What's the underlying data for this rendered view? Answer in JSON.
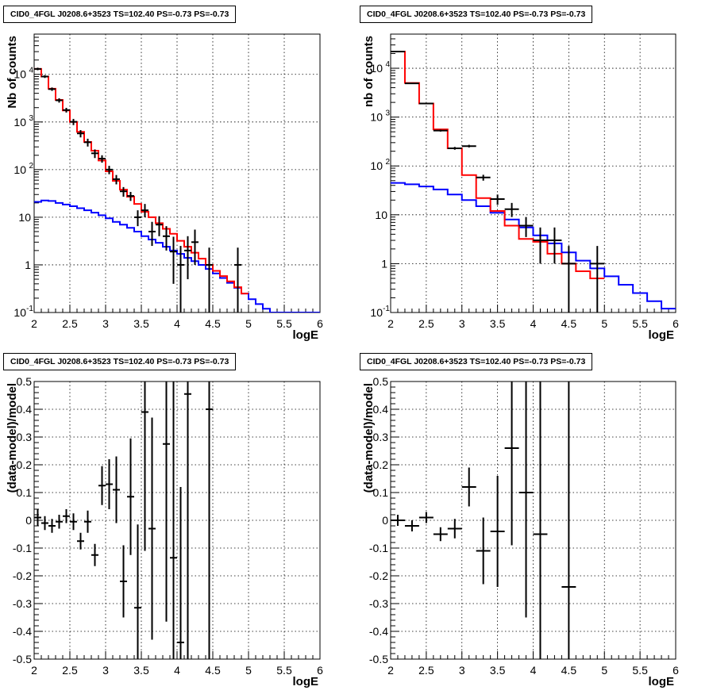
{
  "chart_data": [
    {
      "type": "histogram",
      "title": "CID0_4FGL J0208.6+3523 TS=102.40 PS=-0.73 PS=-0.73",
      "xlabel": "logE",
      "ylabel": "Nb of counts",
      "xlim": [
        2,
        6
      ],
      "ylim": [
        0.1,
        70000
      ],
      "yscale": "log",
      "grid": true,
      "xticks": [
        "2",
        "2.5",
        "3",
        "3.5",
        "4",
        "4.5",
        "5",
        "5.5",
        "6"
      ],
      "yticks": [
        {
          "v": 0.1,
          "m": "10",
          "e": "-1"
        },
        {
          "v": 1,
          "m": "1",
          "e": ""
        },
        {
          "v": 10,
          "m": "10",
          "e": ""
        },
        {
          "v": 100,
          "m": "10",
          "e": "2"
        },
        {
          "v": 1000,
          "m": "10",
          "e": "3"
        },
        {
          "v": 10000,
          "m": "10",
          "e": "4"
        }
      ],
      "series": [
        {
          "color": "#ff0000",
          "bin_width": 0.1,
          "x_edges_start": 2,
          "values": [
            13000,
            9000,
            5000,
            2900,
            1750,
            1000,
            620,
            380,
            250,
            155,
            92,
            58,
            38,
            27,
            19,
            13,
            10,
            7.5,
            5.7,
            4.5,
            3.2,
            2.4,
            1.8,
            1.35,
            1,
            0.75,
            0.58,
            0.45,
            0.34,
            0.25
          ]
        },
        {
          "color": "#0000ff",
          "bin_width": 0.1,
          "x_edges_start": 2,
          "values": [
            21,
            22.5,
            22,
            20,
            18.5,
            17,
            15.5,
            14,
            12.5,
            11,
            9.5,
            8,
            7,
            6,
            5,
            4,
            3.4,
            2.9,
            2.4,
            2,
            1.7,
            1.4,
            1.2,
            1.0,
            0.82,
            0.66,
            0.53,
            0.42,
            0.33,
            0.25,
            0.19,
            0.15,
            0.12,
            0.1,
            0.1,
            0.1,
            0.1,
            0.1,
            0.1,
            0.1
          ]
        }
      ],
      "points": [
        {
          "x": 2.05,
          "y": 13000,
          "el": 800,
          "eh": 800
        },
        {
          "x": 2.15,
          "y": 9000,
          "el": 600,
          "eh": 600
        },
        {
          "x": 2.25,
          "y": 4900,
          "el": 400,
          "eh": 400
        },
        {
          "x": 2.35,
          "y": 2850,
          "el": 300,
          "eh": 300
        },
        {
          "x": 2.45,
          "y": 1780,
          "el": 200,
          "eh": 200
        },
        {
          "x": 2.55,
          "y": 1010,
          "el": 150,
          "eh": 150
        },
        {
          "x": 2.65,
          "y": 575,
          "el": 100,
          "eh": 100
        },
        {
          "x": 2.75,
          "y": 375,
          "el": 70,
          "eh": 70
        },
        {
          "x": 2.85,
          "y": 220,
          "el": 45,
          "eh": 45
        },
        {
          "x": 2.95,
          "y": 170,
          "el": 30,
          "eh": 30
        },
        {
          "x": 3.05,
          "y": 100,
          "el": 20,
          "eh": 20
        },
        {
          "x": 3.15,
          "y": 63,
          "el": 14,
          "eh": 14
        },
        {
          "x": 3.25,
          "y": 35,
          "el": 8,
          "eh": 8
        },
        {
          "x": 3.35,
          "y": 28,
          "el": 6,
          "eh": 6
        },
        {
          "x": 3.45,
          "y": 10,
          "el": 3.5,
          "eh": 4
        },
        {
          "x": 3.55,
          "y": 14,
          "el": 4,
          "eh": 5
        },
        {
          "x": 3.65,
          "y": 5,
          "el": 2.5,
          "eh": 3
        },
        {
          "x": 3.75,
          "y": 7,
          "el": 3,
          "eh": 3.5
        },
        {
          "x": 3.85,
          "y": 4,
          "el": 2,
          "eh": 2.5
        },
        {
          "x": 3.95,
          "y": 1.9,
          "el": 1.5,
          "eh": 2
        },
        {
          "x": 4.05,
          "y": 1,
          "el": 0.9,
          "eh": 1.5
        },
        {
          "x": 4.15,
          "y": 2,
          "el": 1.5,
          "eh": 2
        },
        {
          "x": 4.25,
          "y": 3,
          "el": 2,
          "eh": 2.5
        },
        {
          "x": 4.45,
          "y": 1,
          "el": 0.9,
          "eh": 1.3
        },
        {
          "x": 4.85,
          "y": 1,
          "el": 0.9,
          "eh": 1.3
        }
      ]
    },
    {
      "type": "histogram",
      "title": "CID0_4FGL J0208.6+3523 TS=102.40 PS=-0.73 PS=-0.73",
      "xlabel": "logE",
      "ylabel": "nb of counts",
      "xlim": [
        2,
        6
      ],
      "ylim": [
        0.1,
        50000
      ],
      "yscale": "log",
      "grid": true,
      "xticks": [
        "2",
        "2.5",
        "3",
        "3.5",
        "4",
        "4.5",
        "5",
        "5.5",
        "6"
      ],
      "yticks": [
        {
          "v": 0.1,
          "m": "10",
          "e": "-1"
        },
        {
          "v": 1,
          "m": "1",
          "e": ""
        },
        {
          "v": 10,
          "m": "10",
          "e": ""
        },
        {
          "v": 100,
          "m": "10",
          "e": "2"
        },
        {
          "v": 1000,
          "m": "10",
          "e": "3"
        },
        {
          "v": 10000,
          "m": "10",
          "e": "4"
        }
      ],
      "series": [
        {
          "color": "#ff0000",
          "bin_width": 0.2,
          "x_edges_start": 2,
          "values": [
            22000,
            5000,
            1900,
            560,
            230,
            65,
            22,
            12,
            6,
            3.2,
            2.8,
            1.6,
            1.0,
            0.7,
            0.5
          ]
        },
        {
          "color": "#0000ff",
          "bin_width": 0.2,
          "x_edges_start": 2,
          "values": [
            45,
            42,
            38,
            33,
            26,
            20,
            15,
            11,
            8,
            5.5,
            3.8,
            2.6,
            1.7,
            1.15,
            0.8,
            0.55,
            0.37,
            0.25,
            0.17,
            0.12
          ]
        }
      ],
      "points": [
        {
          "x": 2.1,
          "y": 22000,
          "el": 150,
          "eh": 150
        },
        {
          "x": 2.3,
          "y": 4900,
          "el": 70,
          "eh": 70
        },
        {
          "x": 2.5,
          "y": 1900,
          "el": 45,
          "eh": 45
        },
        {
          "x": 2.7,
          "y": 530,
          "el": 25,
          "eh": 25
        },
        {
          "x": 2.9,
          "y": 230,
          "el": 15,
          "eh": 15
        },
        {
          "x": 3.1,
          "y": 255,
          "el": 16,
          "eh": 16
        },
        {
          "x": 3.3,
          "y": 58,
          "el": 8,
          "eh": 8
        },
        {
          "x": 3.5,
          "y": 21,
          "el": 5,
          "eh": 5
        },
        {
          "x": 3.7,
          "y": 13,
          "el": 4,
          "eh": 4.5
        },
        {
          "x": 3.9,
          "y": 6,
          "el": 2.5,
          "eh": 3
        },
        {
          "x": 4.1,
          "y": 3,
          "el": 2,
          "eh": 2.5
        },
        {
          "x": 4.3,
          "y": 3,
          "el": 2,
          "eh": 2.5
        },
        {
          "x": 4.5,
          "y": 1,
          "el": 0.9,
          "eh": 1.3
        },
        {
          "x": 4.9,
          "y": 1,
          "el": 0.9,
          "eh": 1.3
        }
      ]
    },
    {
      "type": "scatter",
      "title": "CID0_4FGL J0208.6+3523 TS=102.40 PS=-0.73 PS=-0.73",
      "xlabel": "logE",
      "ylabel": "(data-model)/model",
      "xlim": [
        2,
        6
      ],
      "ylim": [
        -0.5,
        0.5
      ],
      "grid": true,
      "xticks": [
        "2",
        "2.5",
        "3",
        "3.5",
        "4",
        "4.5",
        "5",
        "5.5",
        "6"
      ],
      "yticks": [
        "-0.5",
        "-0.4",
        "-0.3",
        "-0.2",
        "-0.1",
        "0",
        "0.1",
        "0.2",
        "0.3",
        "0.4",
        "0.5"
      ],
      "xerr": 0.05,
      "points": [
        {
          "x": 2.05,
          "y": 0.01,
          "e": 0.03
        },
        {
          "x": 2.15,
          "y": -0.01,
          "e": 0.025
        },
        {
          "x": 2.25,
          "y": -0.02,
          "e": 0.025
        },
        {
          "x": 2.35,
          "y": -0.005,
          "e": 0.025
        },
        {
          "x": 2.45,
          "y": 0.015,
          "e": 0.025
        },
        {
          "x": 2.55,
          "y": -0.005,
          "e": 0.03
        },
        {
          "x": 2.65,
          "y": -0.075,
          "e": 0.03
        },
        {
          "x": 2.75,
          "y": -0.005,
          "e": 0.04
        },
        {
          "x": 2.85,
          "y": -0.125,
          "e": 0.04
        },
        {
          "x": 2.95,
          "y": 0.125,
          "e": 0.07
        },
        {
          "x": 3.05,
          "y": 0.13,
          "e": 0.09
        },
        {
          "x": 3.15,
          "y": 0.11,
          "e": 0.12
        },
        {
          "x": 3.25,
          "y": -0.22,
          "e": 0.13
        },
        {
          "x": 3.35,
          "y": 0.085,
          "e": 0.21
        },
        {
          "x": 3.45,
          "y": -0.315,
          "e": 0.3
        },
        {
          "x": 3.55,
          "y": 0.39,
          "e": 0.5
        },
        {
          "x": 3.65,
          "y": -0.03,
          "e": 0.4
        },
        {
          "x": 3.85,
          "y": 0.275,
          "e": 0.64
        },
        {
          "x": 3.95,
          "y": -0.135,
          "e": 0.9
        },
        {
          "x": 4.05,
          "y": -0.44,
          "e": 0.56
        },
        {
          "x": 4.15,
          "y": 0.455,
          "e": 1
        },
        {
          "x": 4.45,
          "y": 0.4,
          "e": 1
        }
      ]
    },
    {
      "type": "scatter",
      "title": "CID0_4FGL J0208.6+3523 TS=102.40 PS=-0.73 PS=-0.73",
      "xlabel": "logE",
      "ylabel": "(data-model)/model",
      "xlim": [
        2,
        6
      ],
      "ylim": [
        -0.5,
        0.5
      ],
      "grid": true,
      "xticks": [
        "2",
        "2.5",
        "3",
        "3.5",
        "4",
        "4.5",
        "5",
        "5.5",
        "6"
      ],
      "yticks": [
        "-0.5",
        "-0.4",
        "-0.3",
        "-0.2",
        "-0.1",
        "0",
        "0.1",
        "0.2",
        "0.3",
        "0.4",
        "0.5"
      ],
      "xerr": 0.1,
      "points": [
        {
          "x": 2.1,
          "y": 0.0,
          "e": 0.02
        },
        {
          "x": 2.3,
          "y": -0.02,
          "e": 0.02
        },
        {
          "x": 2.5,
          "y": 0.01,
          "e": 0.02
        },
        {
          "x": 2.7,
          "y": -0.05,
          "e": 0.025
        },
        {
          "x": 2.9,
          "y": -0.03,
          "e": 0.035
        },
        {
          "x": 3.1,
          "y": 0.12,
          "e": 0.07
        },
        {
          "x": 3.3,
          "y": -0.11,
          "e": 0.12
        },
        {
          "x": 3.5,
          "y": -0.04,
          "e": 0.2
        },
        {
          "x": 3.7,
          "y": 0.26,
          "e": 0.35
        },
        {
          "x": 3.9,
          "y": 0.1,
          "e": 0.45
        },
        {
          "x": 4.1,
          "y": -0.05,
          "e": 0.9
        },
        {
          "x": 4.5,
          "y": -0.24,
          "e": 1
        }
      ]
    }
  ]
}
